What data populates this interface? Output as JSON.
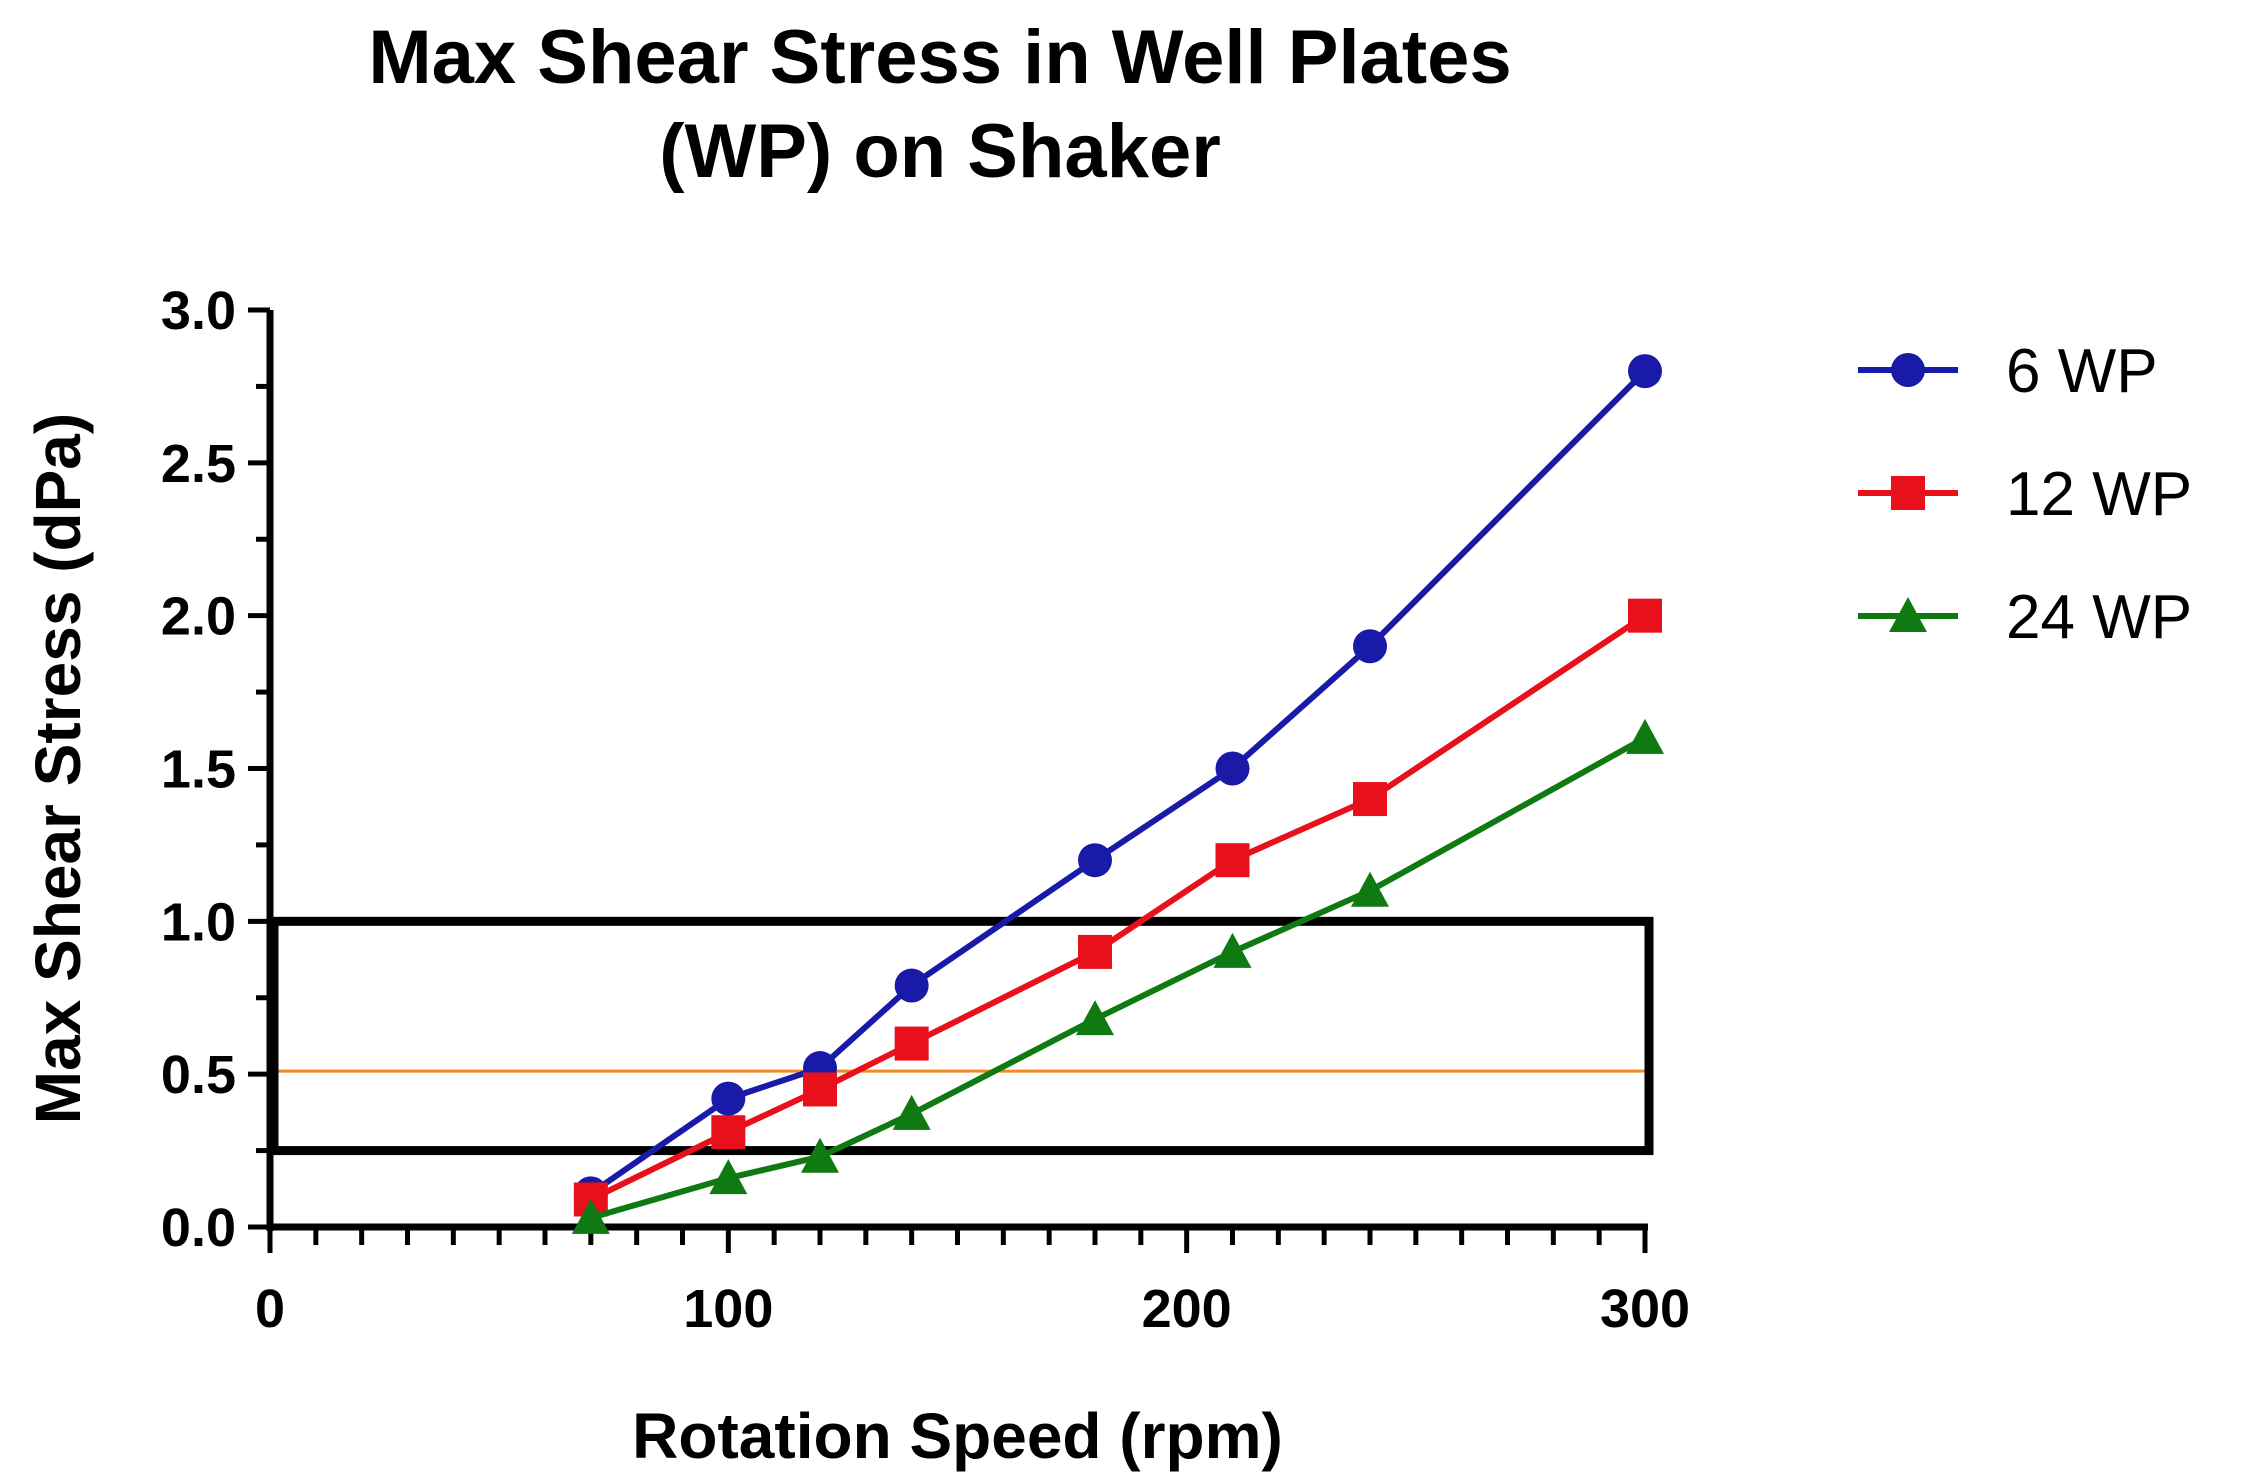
{
  "chart_data": {
    "type": "line",
    "title_lines": [
      "Max Shear Stress in Well  Plates",
      "(WP) on Shaker"
    ],
    "xlabel": "Rotation Speed (rpm)",
    "ylabel": "Max Shear Stress (dPa)",
    "xlim": [
      0,
      300
    ],
    "ylim": [
      0,
      3.0
    ],
    "xticks": [
      0,
      100,
      200,
      300
    ],
    "xtick_labels": [
      "0",
      "100",
      "200",
      "300"
    ],
    "x_minor_step": 10,
    "yticks": [
      0,
      0.5,
      1.0,
      1.5,
      2.0,
      2.5,
      3.0
    ],
    "ytick_labels": [
      "0.0",
      "0.5",
      "1.0",
      "1.5",
      "2.0",
      "2.5",
      "3.0"
    ],
    "y_minor_step": 0.25,
    "grid": false,
    "legend_position": "right",
    "x": [
      70,
      100,
      120,
      140,
      180,
      210,
      240,
      300
    ],
    "series": [
      {
        "name": "6 WP",
        "color": "#1a1aa8",
        "marker": "circle",
        "values": [
          0.11,
          0.42,
          0.52,
          0.79,
          1.2,
          1.5,
          1.9,
          2.8
        ]
      },
      {
        "name": "12 WP",
        "color": "#e8101a",
        "marker": "square",
        "values": [
          0.09,
          0.31,
          0.45,
          0.6,
          0.9,
          1.2,
          1.4,
          2.0
        ]
      },
      {
        "name": "24 WP",
        "color": "#0f7a12",
        "marker": "triangle",
        "values": [
          0.03,
          0.16,
          0.23,
          0.37,
          0.68,
          0.9,
          1.1,
          1.6
        ]
      }
    ],
    "annotations": [
      {
        "type": "box",
        "x_range": [
          0,
          300
        ],
        "y_range": [
          0.25,
          1.0
        ],
        "color": "#000000"
      },
      {
        "type": "hline",
        "y": 0.51,
        "x_range": [
          0,
          300
        ],
        "color": "#f08a24"
      }
    ]
  }
}
